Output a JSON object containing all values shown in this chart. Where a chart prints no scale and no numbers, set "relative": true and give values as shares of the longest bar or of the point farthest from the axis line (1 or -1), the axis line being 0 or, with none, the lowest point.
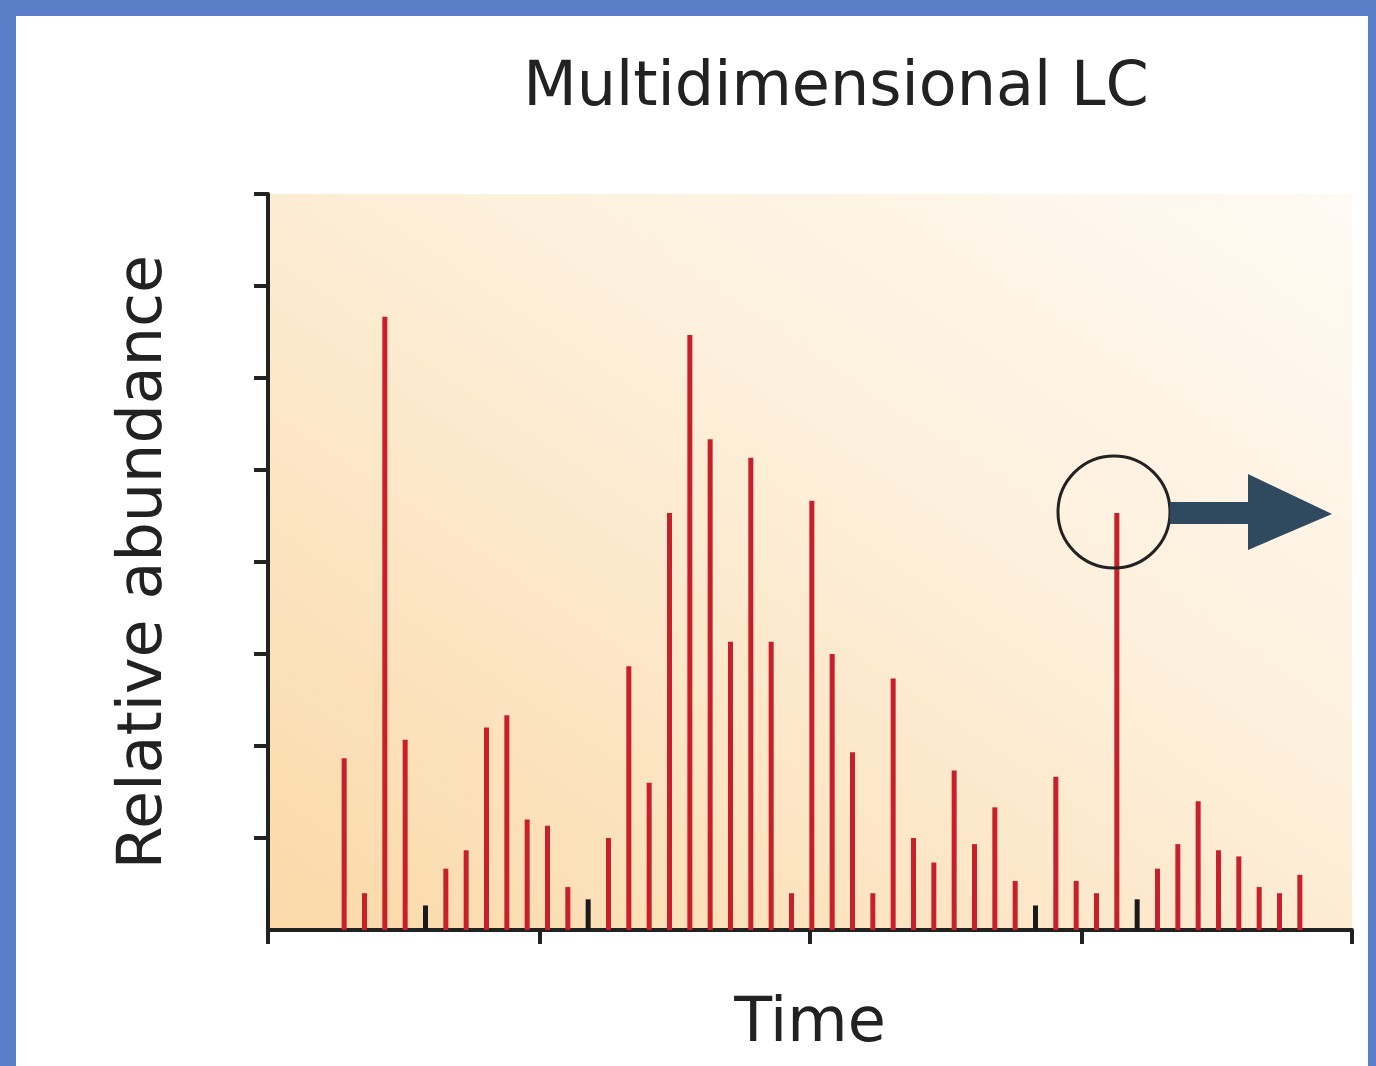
{
  "chart_data": {
    "type": "bar",
    "title": "Multidimensional LC",
    "xlabel": "Time",
    "ylabel": "Relative abundance",
    "relative": true,
    "categories": [
      null,
      null,
      null,
      null,
      null,
      null,
      null,
      null,
      null,
      null,
      null,
      null,
      null,
      null,
      null,
      null,
      null,
      null,
      null,
      null,
      null,
      null,
      null,
      null,
      null,
      null,
      null,
      null,
      null,
      null,
      null,
      null,
      null,
      null,
      null,
      null,
      null,
      null,
      null,
      null,
      null,
      null,
      null,
      null,
      null,
      null,
      null,
      null
    ],
    "values": [
      0.28,
      0.06,
      1,
      0.31,
      0.04,
      0.1,
      0.13,
      0.33,
      0.35,
      0.18,
      0.17,
      0.07,
      0.05,
      0.15,
      0.43,
      0.24,
      0.68,
      0.97,
      0.8,
      0.47,
      0.77,
      0.47,
      0.06,
      0.7,
      0.45,
      0.29,
      0.06,
      0.41,
      0.15,
      0.11,
      0.26,
      0.14,
      0.2,
      0.08,
      0.04,
      0.25,
      0.08,
      0.06,
      0.68,
      0.05,
      0.1,
      0.14,
      0.21,
      0.13,
      0.12,
      0.07,
      0.06,
      0.09
    ],
    "colors": [
      "#c8202a",
      "#c8202a",
      "#c8202a",
      "#c8202a",
      "#1a1a1a",
      "#c8202a",
      "#c8202a",
      "#c8202a",
      "#c8202a",
      "#c8202a",
      "#c8202a",
      "#c8202a",
      "#1a1a1a",
      "#c8202a",
      "#c8202a",
      "#c8202a",
      "#c8202a",
      "#c8202a",
      "#c8202a",
      "#c8202a",
      "#c8202a",
      "#c8202a",
      "#c8202a",
      "#c8202a",
      "#c8202a",
      "#c8202a",
      "#c8202a",
      "#c8202a",
      "#c8202a",
      "#c8202a",
      "#c8202a",
      "#c8202a",
      "#c8202a",
      "#c8202a",
      "#1a1a1a",
      "#c8202a",
      "#c8202a",
      "#c8202a",
      "#c8202a",
      "#1a1a1a",
      "#c8202a",
      "#c8202a",
      "#c8202a",
      "#c8202a",
      "#c8202a",
      "#c8202a",
      "#c8202a",
      "#c8202a"
    ]
  }
}
